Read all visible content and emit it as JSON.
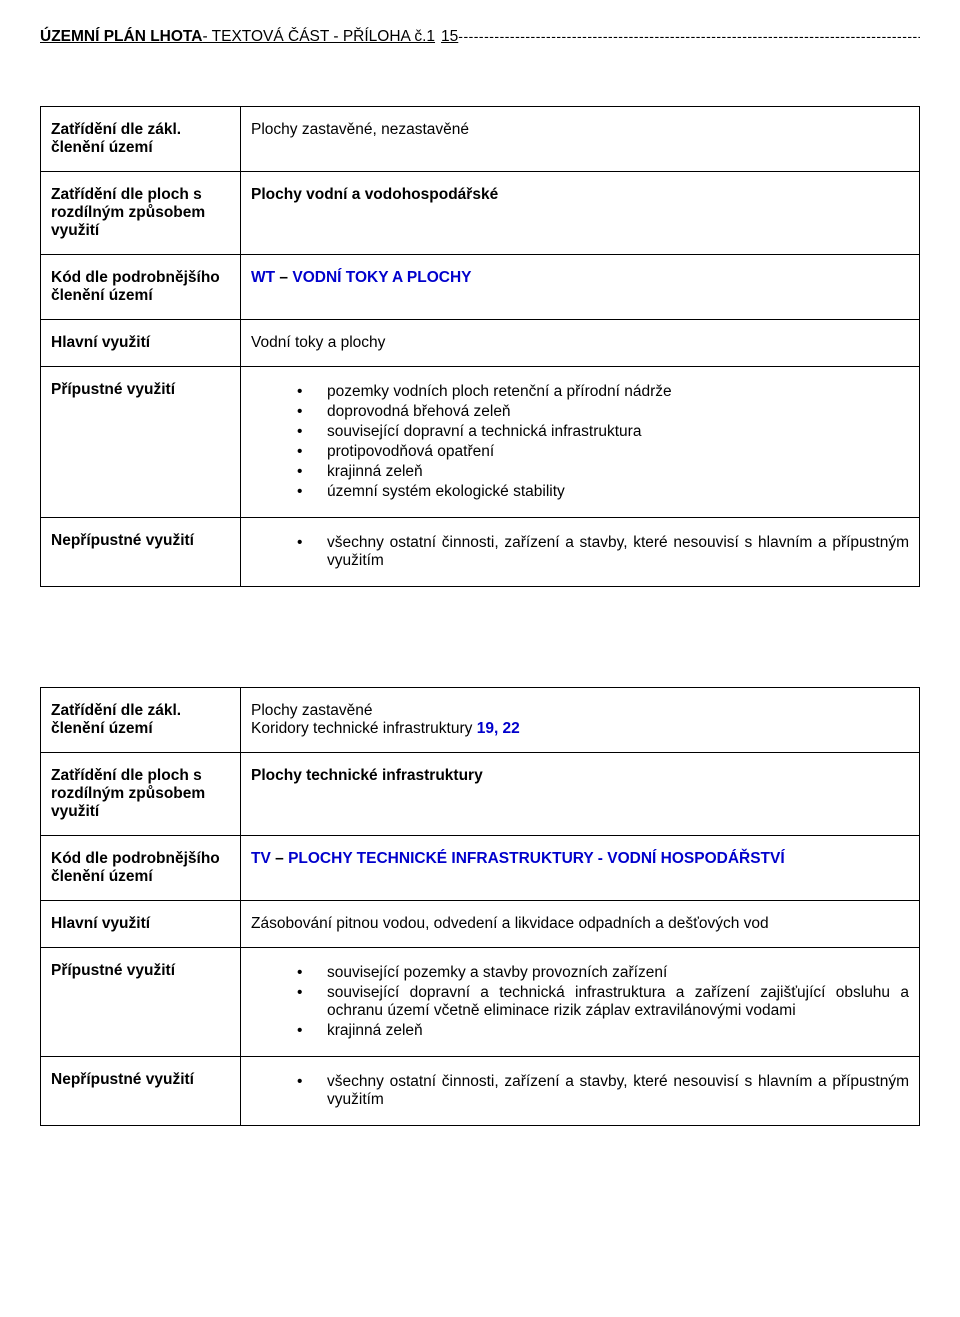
{
  "header": {
    "title_bold": "ÚZEMNÍ PLÁN LHOTA",
    "title_rest": " - TEXTOVÁ  ČÁST  -  PŘÍLOHA č.1",
    "page_num": "15",
    "dashes": "----------------------------------------------------------------------------------------------------------------"
  },
  "colors": {
    "blue": "#0000cc",
    "text": "#000000",
    "border": "#000000"
  },
  "table1": {
    "r1_label": "Zatřídění dle zákl. členění území",
    "r1_value": "Plochy zastavěné, nezastavěné",
    "r2_label": "Zatřídění dle ploch s rozdílným způsobem využití",
    "r2_value": "Plochy vodní a vodohospodářské",
    "r3_label": "Kód dle podrobnějšího členění území",
    "r3_code": "WT",
    "r3_sep": "–",
    "r3_value": "VODNÍ TOKY A PLOCHY",
    "r4_label": "Hlavní využití",
    "r4_value": "Vodní toky a plochy",
    "r5_label": "Přípustné využití",
    "r5_items": [
      "pozemky vodních ploch retenční a přírodní nádrže",
      "doprovodná břehová zeleň",
      "související dopravní a technická infrastruktura",
      "protipovodňová opatření",
      "krajinná zeleň",
      " územní systém ekologické stability"
    ],
    "r6_label": "Nepřípustné využití",
    "r6_items": [
      "všechny ostatní činnosti, zařízení a stavby, které nesouvisí s hlavním a přípustným využitím"
    ]
  },
  "table2": {
    "r1_label": "Zatřídění dle zákl. členění území",
    "r1_value_a": "Plochy zastavěné",
    "r1_value_b_prefix": "Koridory technické infrastruktury ",
    "r1_value_b_blue": "19, 22",
    "r2_label": "Zatřídění dle ploch s rozdílným způsobem využití",
    "r2_value": "Plochy technické infrastruktury",
    "r3_label": "Kód dle podrobnějšího členění území",
    "r3_code": "TV",
    "r3_sep": "–",
    "r3_value": "PLOCHY TECHNICKÉ INFRASTRUKTURY - VODNÍ HOSPODÁŘSTVÍ",
    "r4_label": "Hlavní využití",
    "r4_value": "Zásobování pitnou vodou, odvedení a likvidace odpadních a dešťových vod",
    "r5_label": "Přípustné využití",
    "r5_items": [
      "související pozemky a stavby provozních zařízení",
      "související dopravní a technická infrastruktura a zařízení zajišťující obsluhu a ochranu území včetně eliminace rizik záplav extravilánovými vodami",
      "krajinná zeleň"
    ],
    "r6_label": "Nepřípustné využití",
    "r6_items": [
      "všechny ostatní činnosti, zařízení a stavby, které nesouvisí s hlavním a přípustným využitím"
    ]
  }
}
